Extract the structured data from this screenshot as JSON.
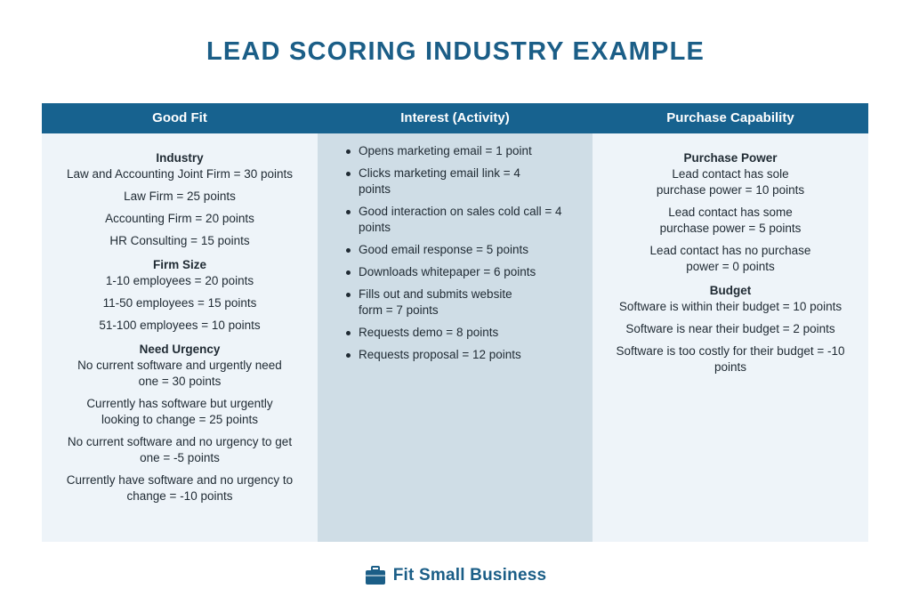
{
  "title": "LEAD SCORING INDUSTRY EXAMPLE",
  "columns": [
    {
      "header": "Good Fit"
    },
    {
      "header": "Interest (Activity)"
    },
    {
      "header": "Purchase Capability"
    }
  ],
  "good_fit": {
    "industry": {
      "heading": "Industry",
      "items": [
        "Law and Accounting Joint Firm = 30 points",
        "Law Firm = 25 points",
        "Accounting Firm = 20 points",
        "HR Consulting = 15 points"
      ]
    },
    "firm_size": {
      "heading": "Firm Size",
      "items": [
        "1-10 employees = 20 points",
        "11-50 employees = 15 points",
        "51-100 employees = 10 points"
      ]
    },
    "need_urgency": {
      "heading": "Need Urgency",
      "items": [
        "No current software and urgently need one = 30 points",
        "Currently has software but urgently looking to change = 25 points",
        "No current software and no urgency to get one = -5 points",
        "Currently have software and no urgency  to change = -10 points"
      ]
    }
  },
  "interest": {
    "items": [
      "Opens marketing email = 1 point",
      "Clicks marketing email link = 4 points",
      "Good interaction on sales cold call = 4 points",
      "Good email response = 5 points",
      "Downloads whitepaper = 6 points",
      "Fills out and submits website form = 7 points",
      "Requests demo = 8 points",
      "Requests proposal = 12 points"
    ]
  },
  "purchase": {
    "power": {
      "heading": "Purchase Power",
      "items": [
        "Lead contact has sole purchase power = 10 points",
        "Lead contact has some purchase power = 5 points",
        "Lead contact has no purchase power = 0 points"
      ]
    },
    "budget": {
      "heading": "Budget",
      "items": [
        "Software is within their budget = 10 points",
        "Software is near their budget = 2 points",
        "Software is too costly for their budget = -10 points"
      ]
    }
  },
  "brand": {
    "name": "Fit Small Business",
    "icon": "briefcase-icon",
    "color": "#1b5e87"
  }
}
